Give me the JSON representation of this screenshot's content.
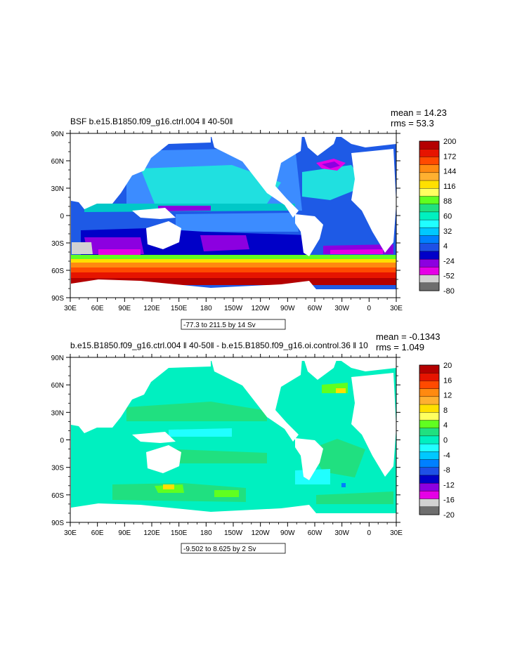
{
  "panels": [
    {
      "title": "BSF b.e15.B1850.f09_g16.ctrl.004 ‖ 40-50‖",
      "mean_label": "mean = 14.23",
      "rms_label": "rms = 53.3",
      "range_label": "-77.3 to 211.5 by 14 Sv",
      "x_ticks": [
        "30E",
        "60E",
        "90E",
        "120E",
        "150E",
        "180",
        "150W",
        "120W",
        "90W",
        "60W",
        "30W",
        "0",
        "30E"
      ],
      "y_ticks": [
        "90N",
        "60N",
        "30N",
        "0",
        "30S",
        "60S",
        "90S"
      ],
      "colorbar": {
        "labels": [
          "200",
          "172",
          "144",
          "116",
          "88",
          "60",
          "32",
          "4",
          "-24",
          "-52",
          "-80"
        ],
        "colors": [
          "#b40000",
          "#e61400",
          "#ff4a00",
          "#ff8a10",
          "#ffb030",
          "#ffe000",
          "#ffff60",
          "#60ff20",
          "#20e080",
          "#00f0c0",
          "#20ffff",
          "#00c8ff",
          "#0080ff",
          "#1e50e6",
          "#0000c8",
          "#8c00e0",
          "#e600e6",
          "#d2d2d2",
          "#6e6e6e"
        ]
      }
    },
    {
      "title": "b.e15.B1850.f09_g16.ctrl.004 ‖ 40-50‖ - b.e15.B1850.f09_g16.oi.control.36 ‖ 10",
      "mean_label": "mean = -0.1343",
      "rms_label": "rms = 1.049",
      "range_label": "-9.502 to 8.625 by 2 Sv",
      "x_ticks": [
        "30E",
        "60E",
        "90E",
        "120E",
        "150E",
        "180",
        "150W",
        "120W",
        "90W",
        "60W",
        "30W",
        "0",
        "30E"
      ],
      "y_ticks": [
        "90N",
        "60N",
        "30N",
        "0",
        "30S",
        "60S",
        "90S"
      ],
      "colorbar": {
        "labels": [
          "20",
          "16",
          "12",
          "8",
          "4",
          "0",
          "-4",
          "-8",
          "-12",
          "-16",
          "-20"
        ],
        "colors": [
          "#b40000",
          "#e61400",
          "#ff4a00",
          "#ff8a10",
          "#ffb030",
          "#ffe000",
          "#ffff60",
          "#60ff20",
          "#20e080",
          "#00f0c0",
          "#20ffff",
          "#00c8ff",
          "#0080ff",
          "#1e50e6",
          "#0000c8",
          "#8c00e0",
          "#e600e6",
          "#d2d2d2",
          "#6e6e6e"
        ]
      }
    }
  ],
  "chart_data": [
    {
      "type": "heatmap",
      "title": "BSF b.e15.B1850.f09_g16.ctrl.004 ‖ 40-50‖",
      "x_ticks": [
        "30E",
        "60E",
        "90E",
        "120E",
        "150E",
        "180",
        "150W",
        "120W",
        "90W",
        "60W",
        "30W",
        "0",
        "30E"
      ],
      "y_ticks": [
        "90N",
        "60N",
        "30N",
        "0",
        "30S",
        "60S",
        "90S"
      ],
      "xlim": [
        30,
        390
      ],
      "ylim": [
        -90,
        90
      ],
      "colorbar_levels": [
        -80,
        -52,
        -24,
        4,
        32,
        60,
        88,
        116,
        144,
        172,
        200
      ],
      "mean": 14.23,
      "rms": 53.3,
      "min": -77.3,
      "max": 211.5,
      "interval": 14,
      "units": "Sv"
    },
    {
      "type": "heatmap",
      "title": "b.e15.B1850.f09_g16.ctrl.004 ‖ 40-50‖ - b.e15.B1850.f09_g16.oi.control.36 ‖ 10",
      "x_ticks": [
        "30E",
        "60E",
        "90E",
        "120E",
        "150E",
        "180",
        "150W",
        "120W",
        "90W",
        "60W",
        "30W",
        "0",
        "30E"
      ],
      "y_ticks": [
        "90N",
        "60N",
        "30N",
        "0",
        "30S",
        "60S",
        "90S"
      ],
      "xlim": [
        30,
        390
      ],
      "ylim": [
        -90,
        90
      ],
      "colorbar_levels": [
        -20,
        -16,
        -12,
        -8,
        -4,
        0,
        4,
        8,
        12,
        16,
        20
      ],
      "mean": -0.1343,
      "rms": 1.049,
      "min": -9.502,
      "max": 8.625,
      "interval": 2,
      "units": "Sv"
    }
  ]
}
